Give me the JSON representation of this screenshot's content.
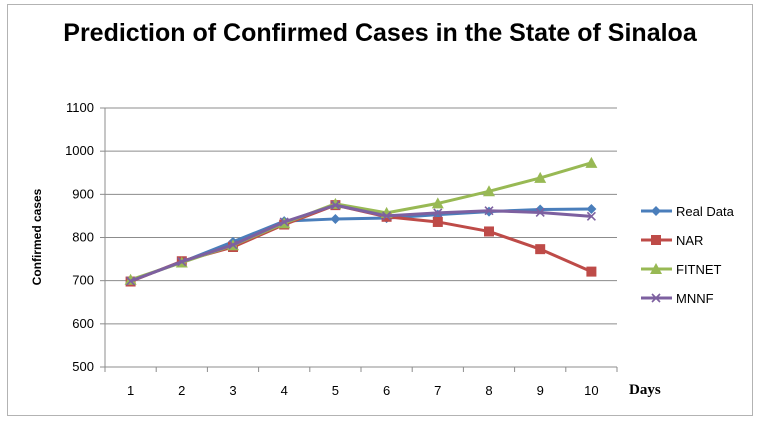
{
  "chart_data": {
    "type": "line",
    "title": "Prediction of Confirmed Cases in the State of Sinaloa",
    "xlabel": "Days",
    "ylabel": "Confirmed cases",
    "categories": [
      "1",
      "2",
      "3",
      "4",
      "5",
      "6",
      "7",
      "8",
      "9",
      "10"
    ],
    "ylim": [
      500,
      1100
    ],
    "yticks": [
      500,
      600,
      700,
      800,
      900,
      1000,
      1100
    ],
    "grid": true,
    "legend": "right",
    "series": [
      {
        "name": "Real Data",
        "color": "#4a7ebb",
        "marker": "diamond",
        "values": [
          700,
          743,
          790,
          838,
          843,
          845,
          853,
          860,
          865,
          866
        ]
      },
      {
        "name": "NAR",
        "color": "#be4b48",
        "marker": "square",
        "values": [
          698,
          745,
          778,
          830,
          875,
          848,
          836,
          814,
          773,
          721
        ]
      },
      {
        "name": "FITNET",
        "color": "#98b954",
        "marker": "triangle",
        "values": [
          702,
          742,
          782,
          833,
          878,
          857,
          879,
          907,
          938,
          973
        ]
      },
      {
        "name": "MNNF",
        "color": "#7d60a0",
        "marker": "x",
        "values": [
          699,
          744,
          783,
          836,
          875,
          850,
          857,
          862,
          858,
          849
        ]
      }
    ]
  }
}
